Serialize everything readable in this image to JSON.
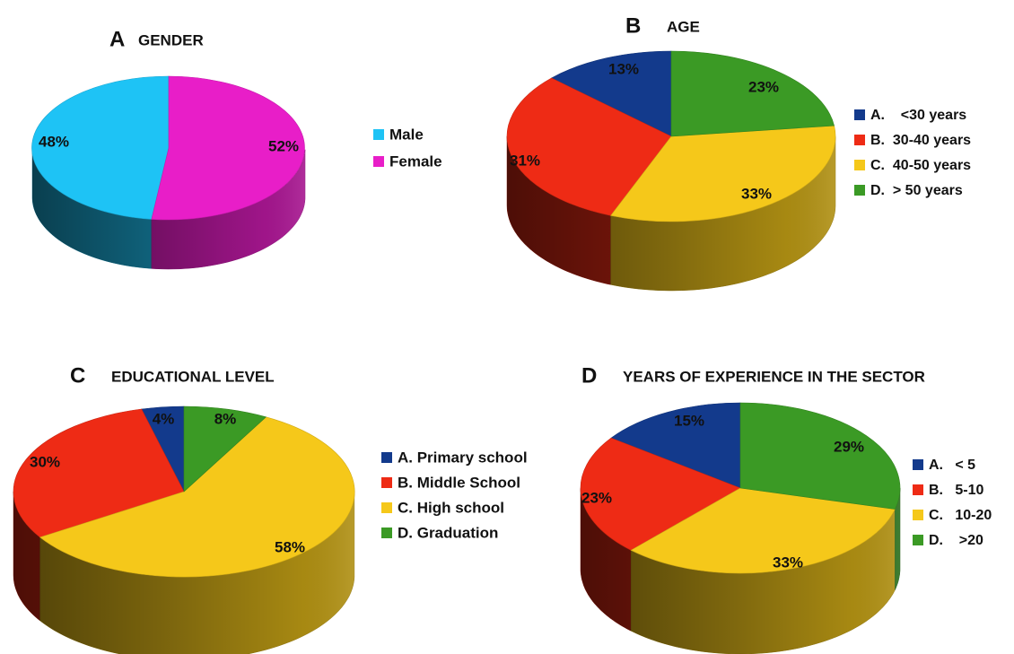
{
  "colors": {
    "male": "#1ec3f5",
    "female": "#e81ec8",
    "blue": "#133a8c",
    "red": "#ee2b15",
    "yellow": "#f5c81a",
    "green": "#3b9a25"
  },
  "chart_data": [
    {
      "type": "pie",
      "panel_letter": "A",
      "title": "GENDER",
      "slices": [
        {
          "legend": "Male",
          "value": 48,
          "label": "48%",
          "color_key": "male"
        },
        {
          "legend": "Female",
          "value": 52,
          "label": "52%",
          "color_key": "female"
        }
      ],
      "legend_position": "right"
    },
    {
      "type": "pie",
      "panel_letter": "B",
      "title": "AGE",
      "slices": [
        {
          "legend": "A.    <30 years",
          "value": 13,
          "label": "13%",
          "color_key": "blue"
        },
        {
          "legend": "B.  30-40 years",
          "value": 31,
          "label": "31%",
          "color_key": "red"
        },
        {
          "legend": "C.  40-50 years",
          "value": 33,
          "label": "33%",
          "color_key": "yellow"
        },
        {
          "legend": "D.  > 50 years",
          "value": 23,
          "label": "23%",
          "color_key": "green"
        }
      ],
      "legend_position": "right"
    },
    {
      "type": "pie",
      "panel_letter": "C",
      "title": "EDUCATIONAL LEVEL",
      "slices": [
        {
          "legend": "A. Primary school",
          "value": 4,
          "label": "4%",
          "color_key": "blue"
        },
        {
          "legend": "B. Middle School",
          "value": 30,
          "label": "30%",
          "color_key": "red"
        },
        {
          "legend": "C. High school",
          "value": 58,
          "label": "58%",
          "color_key": "yellow"
        },
        {
          "legend": "D. Graduation",
          "value": 8,
          "label": "8%",
          "color_key": "green"
        }
      ],
      "legend_position": "right"
    },
    {
      "type": "pie",
      "panel_letter": "D",
      "title": "YEARS OF EXPERIENCE IN THE SECTOR",
      "slices": [
        {
          "legend": "A.   < 5",
          "value": 15,
          "label": "15%",
          "color_key": "blue"
        },
        {
          "legend": "B.   5-10",
          "value": 23,
          "label": "23%",
          "color_key": "red"
        },
        {
          "legend": "C.   10-20",
          "value": 33,
          "label": "33%",
          "color_key": "yellow"
        },
        {
          "legend": "D.    >20",
          "value": 29,
          "label": "29%",
          "color_key": "green"
        }
      ],
      "legend_position": "right"
    }
  ]
}
